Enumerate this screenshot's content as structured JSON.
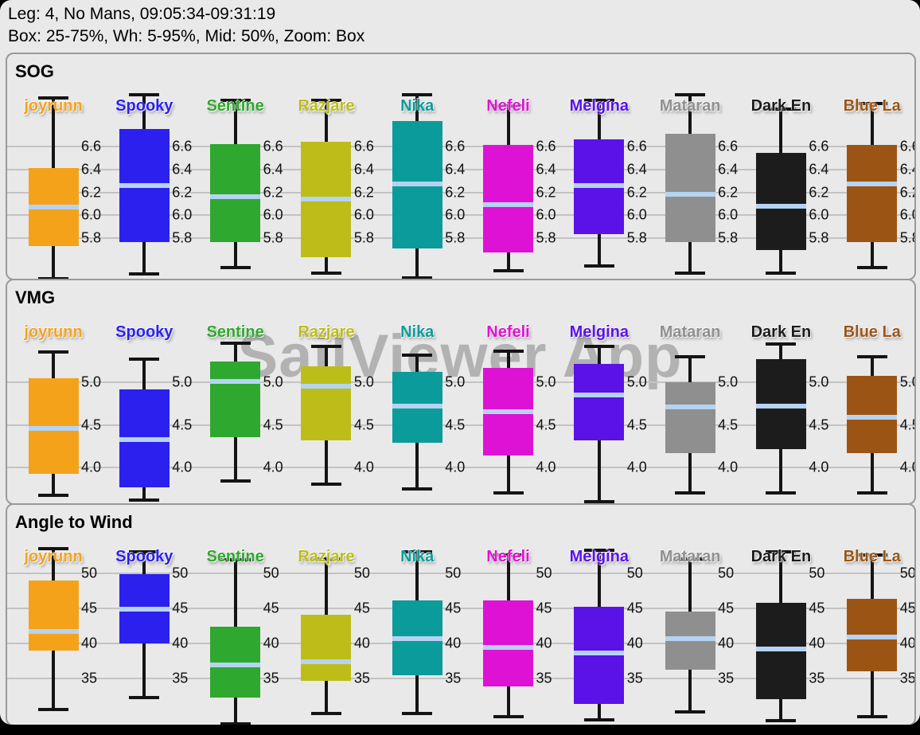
{
  "header": {
    "line1": "Leg: 4, No Mans, 09:05:34-09:31:19",
    "line2": "Box: 25-75%, Wh: 5-95%, Mid: 50%, Zoom: Box"
  },
  "watermark": "SailViewer App",
  "style": {
    "background": "#e9e9e9",
    "panel_border": "#9a9a9a",
    "grid_color": "#c3c3c3",
    "whisker_color": "#141414",
    "median_color": "#b5d3f2",
    "text_color": "#000000"
  },
  "boats": [
    {
      "name": "joyrunn",
      "color": "#F5A21B"
    },
    {
      "name": "Spooky",
      "color": "#2B20EE"
    },
    {
      "name": "Sentine",
      "color": "#2EA82E"
    },
    {
      "name": "Razjare",
      "color": "#BDBD1A"
    },
    {
      "name": "Nika",
      "color": "#0C9B9B"
    },
    {
      "name": "Nefeli",
      "color": "#DE12D4"
    },
    {
      "name": "Melgina",
      "color": "#5A12E6"
    },
    {
      "name": "Mataran",
      "color": "#8F8F8F"
    },
    {
      "name": "Dark En",
      "color": "#1C1C1C"
    },
    {
      "name": "Blue La",
      "color": "#9C5415"
    }
  ],
  "chart_data": [
    {
      "type": "boxplot",
      "title": "SOG",
      "ylim": [
        5.45,
        7.4
      ],
      "ticks": [
        6.6,
        6.4,
        6.2,
        6.0,
        5.8
      ],
      "tick_labels": [
        "6.6",
        "6.4",
        "6.2",
        "6.0",
        "5.8"
      ],
      "grid": true,
      "series": [
        {
          "name": "joyrunn",
          "whisker_low": 5.45,
          "q1": 5.73,
          "median": 6.07,
          "q3": 6.41,
          "whisker_high": 7.02
        },
        {
          "name": "Spooky",
          "whisker_low": 5.49,
          "q1": 5.77,
          "median": 6.26,
          "q3": 6.75,
          "whisker_high": 7.05
        },
        {
          "name": "Sentine",
          "whisker_low": 5.55,
          "q1": 5.77,
          "median": 6.16,
          "q3": 6.62,
          "whisker_high": 7.0
        },
        {
          "name": "Razjare",
          "whisker_low": 5.5,
          "q1": 5.64,
          "median": 6.14,
          "q3": 6.64,
          "whisker_high": 7.0
        },
        {
          "name": "Nika",
          "whisker_low": 5.46,
          "q1": 5.71,
          "median": 6.27,
          "q3": 6.82,
          "whisker_high": 7.05
        },
        {
          "name": "Nefeli",
          "whisker_low": 5.52,
          "q1": 5.68,
          "median": 6.09,
          "q3": 6.61,
          "whisker_high": 6.95
        },
        {
          "name": "Melgina",
          "whisker_low": 5.56,
          "q1": 5.84,
          "median": 6.26,
          "q3": 6.66,
          "whisker_high": 7.0
        },
        {
          "name": "Mataran",
          "whisker_low": 5.5,
          "q1": 5.77,
          "median": 6.18,
          "q3": 6.71,
          "whisker_high": 7.05
        },
        {
          "name": "Dark En",
          "whisker_low": 5.5,
          "q1": 5.7,
          "median": 6.08,
          "q3": 6.54,
          "whisker_high": 6.92
        },
        {
          "name": "Blue La",
          "whisker_low": 5.55,
          "q1": 5.77,
          "median": 6.27,
          "q3": 6.61,
          "whisker_high": 6.97
        }
      ]
    },
    {
      "type": "boxplot",
      "title": "VMG",
      "ylim": [
        3.58,
        6.2
      ],
      "ticks": [
        5.0,
        4.5,
        4.0
      ],
      "tick_labels": [
        "5.0",
        "4.5",
        "4.0"
      ],
      "grid": true,
      "series": [
        {
          "name": "joyrunn",
          "whisker_low": 3.67,
          "q1": 3.93,
          "median": 4.46,
          "q3": 5.05,
          "whisker_high": 5.36
        },
        {
          "name": "Spooky",
          "whisker_low": 3.62,
          "q1": 3.77,
          "median": 4.33,
          "q3": 4.92,
          "whisker_high": 5.27
        },
        {
          "name": "Sentine",
          "whisker_low": 3.84,
          "q1": 4.36,
          "median": 5.01,
          "q3": 5.25,
          "whisker_high": 5.46
        },
        {
          "name": "Razjare",
          "whisker_low": 3.8,
          "q1": 4.32,
          "median": 4.96,
          "q3": 5.19,
          "whisker_high": 5.42
        },
        {
          "name": "Nika",
          "whisker_low": 3.75,
          "q1": 4.29,
          "median": 4.72,
          "q3": 5.12,
          "whisker_high": 5.32
        },
        {
          "name": "Nefeli",
          "whisker_low": 3.7,
          "q1": 4.14,
          "median": 4.66,
          "q3": 5.17,
          "whisker_high": 5.37
        },
        {
          "name": "Melgina",
          "whisker_low": 3.6,
          "q1": 4.32,
          "median": 4.85,
          "q3": 5.22,
          "whisker_high": 5.42
        },
        {
          "name": "Mataran",
          "whisker_low": 3.7,
          "q1": 4.17,
          "median": 4.71,
          "q3": 5.0,
          "whisker_high": 5.3
        },
        {
          "name": "Dark En",
          "whisker_low": 3.7,
          "q1": 4.22,
          "median": 4.72,
          "q3": 5.27,
          "whisker_high": 5.45
        },
        {
          "name": "Blue La",
          "whisker_low": 3.7,
          "q1": 4.17,
          "median": 4.59,
          "q3": 5.08,
          "whisker_high": 5.3
        }
      ]
    },
    {
      "type": "boxplot",
      "title": "Angle to Wind",
      "ylim": [
        28.4,
        59.7
      ],
      "ticks": [
        50,
        45,
        40,
        35
      ],
      "tick_labels": [
        "50",
        "45",
        "40",
        "35"
      ],
      "grid": true,
      "series": [
        {
          "name": "joyrunn",
          "whisker_low": 30.5,
          "q1": 38.9,
          "median": 41.7,
          "q3": 48.9,
          "whisker_high": 53.5
        },
        {
          "name": "Spooky",
          "whisker_low": 32.3,
          "q1": 40.0,
          "median": 44.8,
          "q3": 49.8,
          "whisker_high": 53.0
        },
        {
          "name": "Sentine",
          "whisker_low": 28.5,
          "q1": 32.3,
          "median": 36.9,
          "q3": 42.3,
          "whisker_high": 51.9
        },
        {
          "name": "Razjare",
          "whisker_low": 30.0,
          "q1": 34.6,
          "median": 37.4,
          "q3": 44.0,
          "whisker_high": 52.0
        },
        {
          "name": "Nika",
          "whisker_low": 30.0,
          "q1": 35.4,
          "median": 40.6,
          "q3": 46.1,
          "whisker_high": 53.0
        },
        {
          "name": "Nefeli",
          "whisker_low": 29.5,
          "q1": 33.9,
          "median": 39.4,
          "q3": 46.1,
          "whisker_high": 52.5
        },
        {
          "name": "Melgina",
          "whisker_low": 29.1,
          "q1": 31.4,
          "median": 38.6,
          "q3": 45.2,
          "whisker_high": 53.2
        },
        {
          "name": "Mataran",
          "whisker_low": 30.2,
          "q1": 36.2,
          "median": 40.6,
          "q3": 44.5,
          "whisker_high": 52.0
        },
        {
          "name": "Dark En",
          "whisker_low": 29.0,
          "q1": 32.0,
          "median": 39.2,
          "q3": 45.8,
          "whisker_high": 53.0
        },
        {
          "name": "Blue La",
          "whisker_low": 29.5,
          "q1": 36.0,
          "median": 40.9,
          "q3": 46.3,
          "whisker_high": 52.5
        }
      ]
    }
  ]
}
